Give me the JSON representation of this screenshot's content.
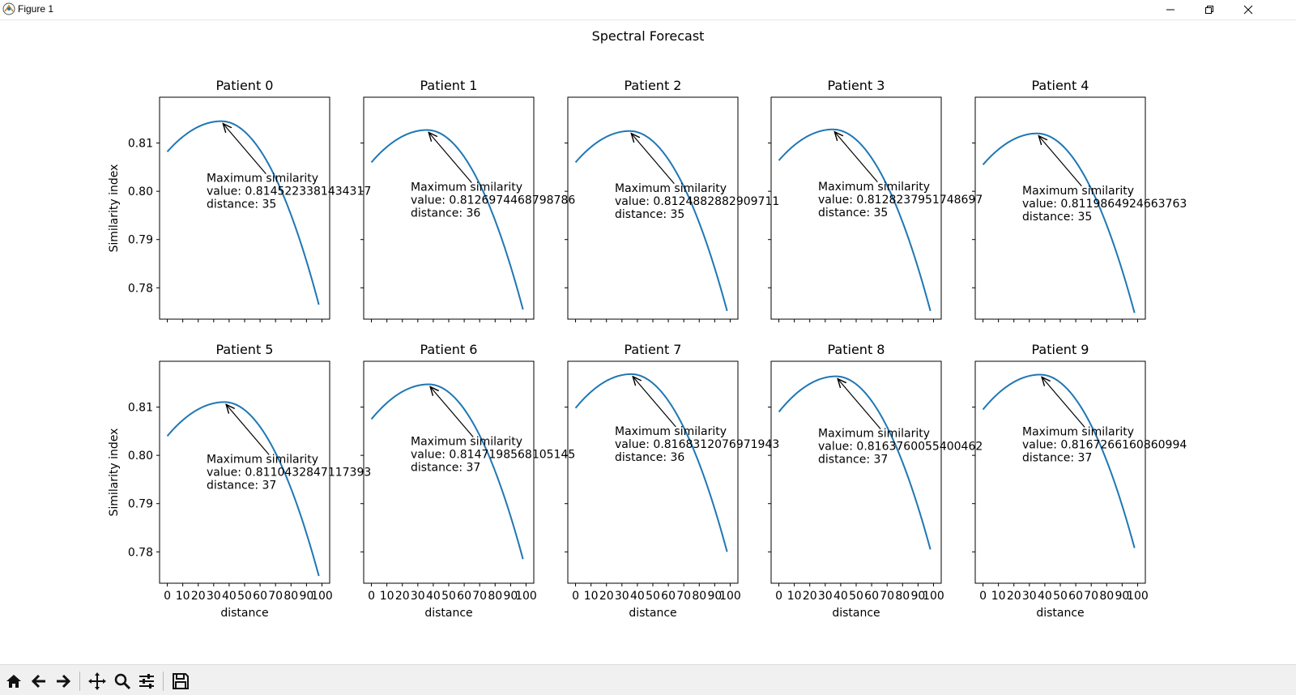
{
  "window": {
    "title": "Figure 1"
  },
  "toolbar": {
    "buttons": [
      "home-icon",
      "back-icon",
      "forward-icon",
      "pan-icon",
      "zoom-icon",
      "configure-subplots-icon",
      "save-icon"
    ]
  },
  "colors": {
    "line": "#1f77b4",
    "text": "#000000",
    "toolbar_bg": "#f0f0f0"
  },
  "chart_data": {
    "type": "line",
    "suptitle": "Spectral Forecast",
    "xlabel": "distance",
    "ylabel": "Similarity index",
    "xlim": [
      -5,
      105
    ],
    "ylim": [
      0.7735,
      0.8195
    ],
    "xticks": [
      0,
      10,
      20,
      30,
      40,
      50,
      60,
      70,
      80,
      90,
      100
    ],
    "yticks": [
      0.78,
      0.79,
      0.8,
      0.81
    ],
    "grid": false,
    "subplots": [
      {
        "title": "Patient 0",
        "x_start": 0,
        "x_end": 98,
        "y_start": 0.8082,
        "y_max": 0.81452233814343,
        "x_max": 35,
        "y_end": 0.7765,
        "ann_line1": "Maximum similarity",
        "ann_line2": "value: 0.8145223381434317",
        "ann_line3": "distance: 35"
      },
      {
        "title": "Patient 1",
        "x_start": 0,
        "x_end": 98,
        "y_start": 0.806,
        "y_max": 0.812697446879878,
        "x_max": 36,
        "y_end": 0.7755,
        "ann_line1": "Maximum similarity",
        "ann_line2": "value: 0.8126974468798786",
        "ann_line3": "distance: 36"
      },
      {
        "title": "Patient 2",
        "x_start": 0,
        "x_end": 98,
        "y_start": 0.806,
        "y_max": 0.812488288290971,
        "x_max": 35,
        "y_end": 0.7752,
        "ann_line1": "Maximum similarity",
        "ann_line2": "value: 0.8124882882909711",
        "ann_line3": "distance: 35"
      },
      {
        "title": "Patient 3",
        "x_start": 0,
        "x_end": 98,
        "y_start": 0.8064,
        "y_max": 0.812823795174869,
        "x_max": 35,
        "y_end": 0.7752,
        "ann_line1": "Maximum similarity",
        "ann_line2": "value: 0.8128237951748697",
        "ann_line3": "distance: 35"
      },
      {
        "title": "Patient 4",
        "x_start": 0,
        "x_end": 98,
        "y_start": 0.8055,
        "y_max": 0.8119864924663763,
        "x_max": 35,
        "y_end": 0.7748,
        "ann_line1": "Maximum similarity",
        "ann_line2": "value: 0.8119864924663763",
        "ann_line3": "distance: 35"
      },
      {
        "title": "Patient 5",
        "x_start": 0,
        "x_end": 98,
        "y_start": 0.804,
        "y_max": 0.811043284711739,
        "x_max": 37,
        "y_end": 0.775,
        "ann_line1": "Maximum similarity",
        "ann_line2": "value: 0.8110432847117393",
        "ann_line3": "distance: 37"
      },
      {
        "title": "Patient 6",
        "x_start": 0,
        "x_end": 98,
        "y_start": 0.8075,
        "y_max": 0.814719856810514,
        "x_max": 37,
        "y_end": 0.7785,
        "ann_line1": "Maximum similarity",
        "ann_line2": "value: 0.8147198568105145",
        "ann_line3": "distance: 37"
      },
      {
        "title": "Patient 7",
        "x_start": 0,
        "x_end": 98,
        "y_start": 0.8098,
        "y_max": 0.816831207697194,
        "x_max": 36,
        "y_end": 0.78,
        "ann_line1": "Maximum similarity",
        "ann_line2": "value: 0.8168312076971943",
        "ann_line3": "distance: 36"
      },
      {
        "title": "Patient 8",
        "x_start": 0,
        "x_end": 98,
        "y_start": 0.809,
        "y_max": 0.816376005540046,
        "x_max": 37,
        "y_end": 0.7805,
        "ann_line1": "Maximum similarity",
        "ann_line2": "value: 0.8163760055400462",
        "ann_line3": "distance: 37"
      },
      {
        "title": "Patient 9",
        "x_start": 0,
        "x_end": 98,
        "y_start": 0.8095,
        "y_max": 0.8167266160860994,
        "x_max": 37,
        "y_end": 0.7808,
        "ann_line1": "Maximum similarity",
        "ann_line2": "value: 0.8167266160860994",
        "ann_line3": "distance: 37"
      }
    ]
  }
}
